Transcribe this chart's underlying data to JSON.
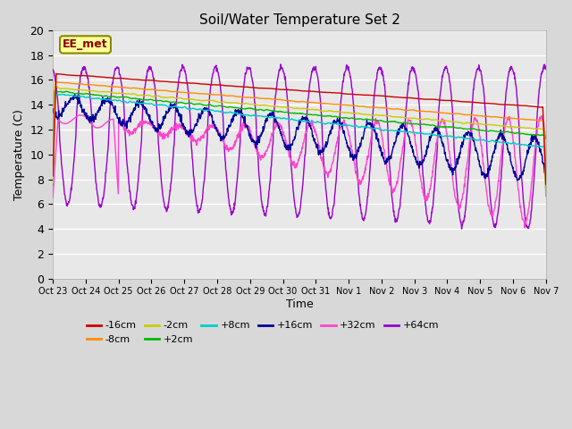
{
  "title": "Soil/Water Temperature Set 2",
  "xlabel": "Time",
  "ylabel": "Temperature (C)",
  "ylim": [
    0,
    20
  ],
  "yticks": [
    0,
    2,
    4,
    6,
    8,
    10,
    12,
    14,
    16,
    18,
    20
  ],
  "fig_bg": "#d8d8d8",
  "plot_bg": "#e8e8e8",
  "series_colors": {
    "-16cm": "#cc0000",
    "-8cm": "#ff8c00",
    "-2cm": "#cccc00",
    "+2cm": "#00bb00",
    "+8cm": "#00cccc",
    "+16cm": "#000099",
    "+32cm": "#ff44cc",
    "+64cm": "#9900cc"
  },
  "xtick_labels": [
    "Oct 23",
    "Oct 24",
    "Oct 25",
    "Oct 26",
    "Oct 27",
    "Oct 28",
    "Oct 29",
    "Oct 30",
    "Oct 31",
    "Nov 1",
    "Nov 2",
    "Nov 3",
    "Nov 4",
    "Nov 5",
    "Nov 6",
    "Nov 7"
  ],
  "annotation_text": "EE_met",
  "annotation_color": "#880000",
  "annotation_bg": "#ffff99",
  "annotation_border": "#888800"
}
